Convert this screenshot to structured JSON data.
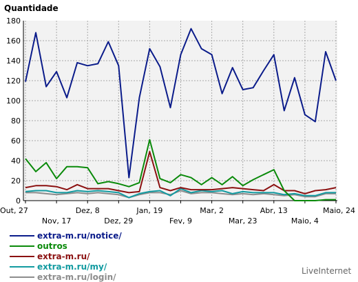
{
  "brand": "LiveInternet",
  "chart_data": {
    "type": "line",
    "ylabel": "Quantidade",
    "ylim": [
      0,
      180
    ],
    "yticks": [
      0,
      20,
      40,
      60,
      80,
      100,
      120,
      140,
      160,
      180
    ],
    "grid": true,
    "x_tick_labels": [
      {
        "label": "Out, 27",
        "index": 0,
        "row": 1
      },
      {
        "label": "Nov, 17",
        "index": 3,
        "row": 2
      },
      {
        "label": "Dez, 8",
        "index": 6,
        "row": 1
      },
      {
        "label": "Dez, 29",
        "index": 9,
        "row": 2
      },
      {
        "label": "Jan, 19",
        "index": 12,
        "row": 1
      },
      {
        "label": "Fev, 9",
        "index": 15,
        "row": 2
      },
      {
        "label": "Mar, 2",
        "index": 18,
        "row": 1
      },
      {
        "label": "Mar, 23",
        "index": 21,
        "row": 2
      },
      {
        "label": "Abr, 13",
        "index": 24,
        "row": 1
      },
      {
        "label": "Maio, 4",
        "index": 27,
        "row": 2
      },
      {
        "label": "Maio, 24",
        "index": 30,
        "row": 1
      }
    ],
    "series": [
      {
        "name": "extra-m.ru/notice/",
        "color": "#0a1b8a",
        "values": [
          119,
          168,
          114,
          129,
          103,
          138,
          135,
          137,
          159,
          135,
          23,
          103,
          152,
          134,
          93,
          146,
          172,
          152,
          146,
          107,
          133,
          111,
          113,
          130,
          146,
          90,
          123,
          86,
          79,
          149,
          120
        ]
      },
      {
        "name": "outros",
        "color": "#0a8a0a",
        "values": [
          42,
          29,
          38,
          22,
          34,
          34,
          33,
          17,
          19,
          17,
          14,
          18,
          61,
          22,
          18,
          26,
          23,
          16,
          23,
          16,
          24,
          15,
          21,
          26,
          31,
          10,
          0,
          0,
          0,
          1,
          1
        ]
      },
      {
        "name": "extra-m.ru/",
        "color": "#8b1010",
        "values": [
          13,
          15,
          15,
          14,
          11,
          16,
          12,
          12,
          12,
          10,
          8,
          9,
          49,
          13,
          10,
          13,
          11,
          11,
          11,
          12,
          13,
          12,
          11,
          10,
          16,
          10,
          10,
          7,
          10,
          11,
          13
        ]
      },
      {
        "name": "extra-m.ru/my/",
        "color": "#119aa0",
        "values": [
          9,
          10,
          10,
          8,
          8,
          10,
          9,
          10,
          9,
          8,
          3,
          7,
          9,
          10,
          5,
          12,
          8,
          10,
          9,
          10,
          7,
          9,
          8,
          8,
          8,
          6,
          7,
          5,
          5,
          8,
          8
        ]
      },
      {
        "name": "extra-m.ru/login/",
        "color": "#8c8c8c",
        "values": [
          8,
          8,
          7,
          6,
          7,
          8,
          7,
          8,
          7,
          6,
          3,
          6,
          8,
          8,
          6,
          10,
          7,
          8,
          8,
          7,
          6,
          7,
          6,
          7,
          6,
          5,
          6,
          4,
          4,
          7,
          7
        ]
      }
    ]
  }
}
